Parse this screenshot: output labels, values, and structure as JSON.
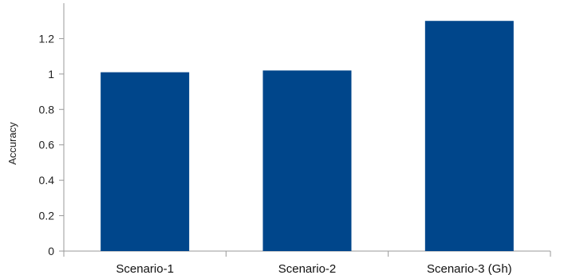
{
  "chart_data": {
    "type": "bar",
    "categories": [
      "Scenario-1",
      "Scenario-2",
      "Scenario-3 (Gh)"
    ],
    "values": [
      1.01,
      1.02,
      1.3
    ],
    "title": "",
    "xlabel": "",
    "ylabel": "Accuracy",
    "ylim": [
      0,
      1.4
    ],
    "yticks": [
      "0",
      "0.2",
      "0.4",
      "0.6",
      "0.8",
      "1",
      "1.2"
    ],
    "grid": false,
    "legend": "none",
    "bar_color": "#00468b",
    "axis_color": "#999999"
  }
}
